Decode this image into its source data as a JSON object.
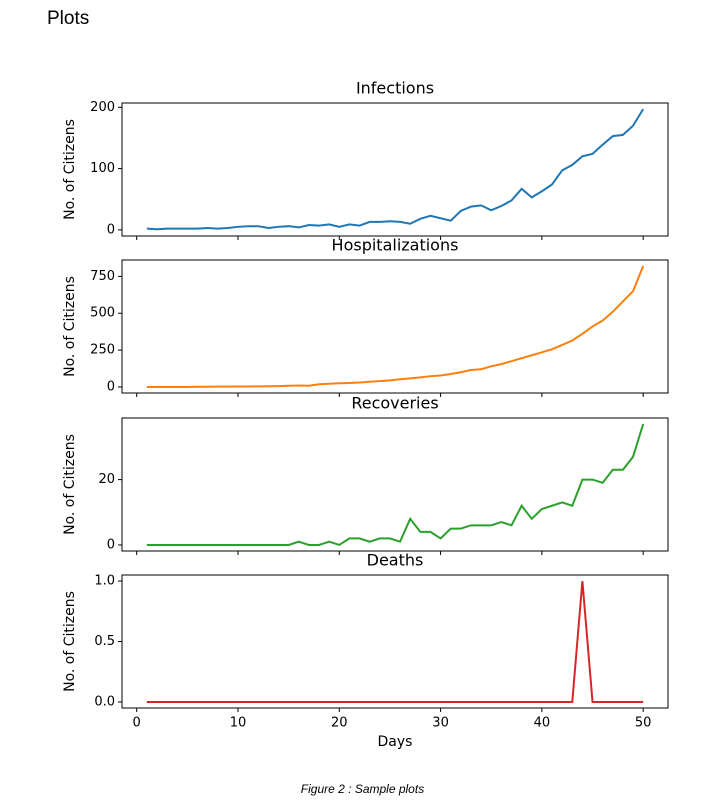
{
  "heading": "Plots",
  "caption": "Figure 2 : Sample plots",
  "chart_data": [
    {
      "type": "line",
      "title": "Infections",
      "ylabel": "No. of Citizens",
      "color": "#1f77b4",
      "x": [
        1,
        2,
        3,
        4,
        5,
        6,
        7,
        8,
        9,
        10,
        11,
        12,
        13,
        14,
        15,
        16,
        17,
        18,
        19,
        20,
        21,
        22,
        23,
        24,
        25,
        26,
        27,
        28,
        29,
        30,
        31,
        32,
        33,
        34,
        35,
        36,
        37,
        38,
        39,
        40,
        41,
        42,
        43,
        44,
        45,
        46,
        47,
        48,
        49,
        50
      ],
      "values": [
        2,
        1,
        2,
        2,
        2,
        2,
        3,
        2,
        3,
        5,
        6,
        6,
        3,
        5,
        6,
        4,
        8,
        7,
        9,
        5,
        9,
        7,
        13,
        13,
        14,
        13,
        10,
        18,
        23,
        19,
        15,
        31,
        38,
        40,
        32,
        39,
        48,
        67,
        53,
        63,
        74,
        97,
        106,
        120,
        124,
        139,
        153,
        155,
        170,
        197
      ],
      "xlim": [
        -1.45,
        52.45
      ],
      "ylim": [
        -10,
        207
      ],
      "yticks": [
        0,
        100,
        200
      ]
    },
    {
      "type": "line",
      "title": "Hospitalizations",
      "ylabel": "No. of Citizens",
      "color": "#ff7f0e",
      "x": [
        1,
        2,
        3,
        4,
        5,
        6,
        7,
        8,
        9,
        10,
        11,
        12,
        13,
        14,
        15,
        16,
        17,
        18,
        19,
        20,
        21,
        22,
        23,
        24,
        25,
        26,
        27,
        28,
        29,
        30,
        31,
        32,
        33,
        34,
        35,
        36,
        37,
        38,
        39,
        40,
        41,
        42,
        43,
        44,
        45,
        46,
        47,
        48,
        49,
        50
      ],
      "values": [
        0,
        0,
        0,
        0,
        0,
        1,
        1,
        2,
        2,
        3,
        3,
        4,
        5,
        6,
        8,
        10,
        8,
        18,
        22,
        25,
        27,
        30,
        35,
        40,
        45,
        52,
        58,
        65,
        73,
        78,
        88,
        100,
        115,
        120,
        140,
        155,
        175,
        195,
        215,
        235,
        255,
        285,
        315,
        360,
        410,
        450,
        510,
        580,
        650,
        820
      ],
      "xlim": [
        -1.45,
        52.45
      ],
      "ylim": [
        -41,
        861
      ],
      "yticks": [
        0,
        250,
        500,
        750
      ]
    },
    {
      "type": "line",
      "title": "Recoveries",
      "ylabel": "No. of Citizens",
      "color": "#2ca02c",
      "x": [
        1,
        2,
        3,
        4,
        5,
        6,
        7,
        8,
        9,
        10,
        11,
        12,
        13,
        14,
        15,
        16,
        17,
        18,
        19,
        20,
        21,
        22,
        23,
        24,
        25,
        26,
        27,
        28,
        29,
        30,
        31,
        32,
        33,
        34,
        35,
        36,
        37,
        38,
        39,
        40,
        41,
        42,
        43,
        44,
        45,
        46,
        47,
        48,
        49,
        50
      ],
      "values": [
        0,
        0,
        0,
        0,
        0,
        0,
        0,
        0,
        0,
        0,
        0,
        0,
        0,
        0,
        0,
        1,
        0,
        0,
        1,
        0,
        2,
        2,
        1,
        2,
        2,
        1,
        8,
        4,
        4,
        2,
        5,
        5,
        6,
        6,
        6,
        7,
        6,
        12,
        8,
        11,
        12,
        13,
        12,
        20,
        20,
        19,
        23,
        23,
        27,
        37
      ],
      "xlim": [
        -1.45,
        52.45
      ],
      "ylim": [
        -1.85,
        38.85
      ],
      "yticks": [
        0,
        20
      ]
    },
    {
      "type": "line",
      "title": "Deaths",
      "ylabel": "No. of Citizens",
      "xlabel": "Days",
      "color": "#d62728",
      "x": [
        1,
        2,
        3,
        4,
        5,
        6,
        7,
        8,
        9,
        10,
        11,
        12,
        13,
        14,
        15,
        16,
        17,
        18,
        19,
        20,
        21,
        22,
        23,
        24,
        25,
        26,
        27,
        28,
        29,
        30,
        31,
        32,
        33,
        34,
        35,
        36,
        37,
        38,
        39,
        40,
        41,
        42,
        43,
        44,
        45,
        46,
        47,
        48,
        49,
        50
      ],
      "values": [
        0,
        0,
        0,
        0,
        0,
        0,
        0,
        0,
        0,
        0,
        0,
        0,
        0,
        0,
        0,
        0,
        0,
        0,
        0,
        0,
        0,
        0,
        0,
        0,
        0,
        0,
        0,
        0,
        0,
        0,
        0,
        0,
        0,
        0,
        0,
        0,
        0,
        0,
        0,
        0,
        0,
        0,
        0,
        1,
        0,
        0,
        0,
        0,
        0,
        0
      ],
      "xlim": [
        -1.45,
        52.45
      ],
      "ylim": [
        -0.05,
        1.05
      ],
      "yticks": [
        {
          "value": 0,
          "label": "0.0"
        },
        {
          "value": 0.5,
          "label": "0.5"
        },
        {
          "value": 1,
          "label": "1.0"
        }
      ],
      "xticks": [
        0,
        10,
        20,
        30,
        40,
        50
      ]
    }
  ]
}
